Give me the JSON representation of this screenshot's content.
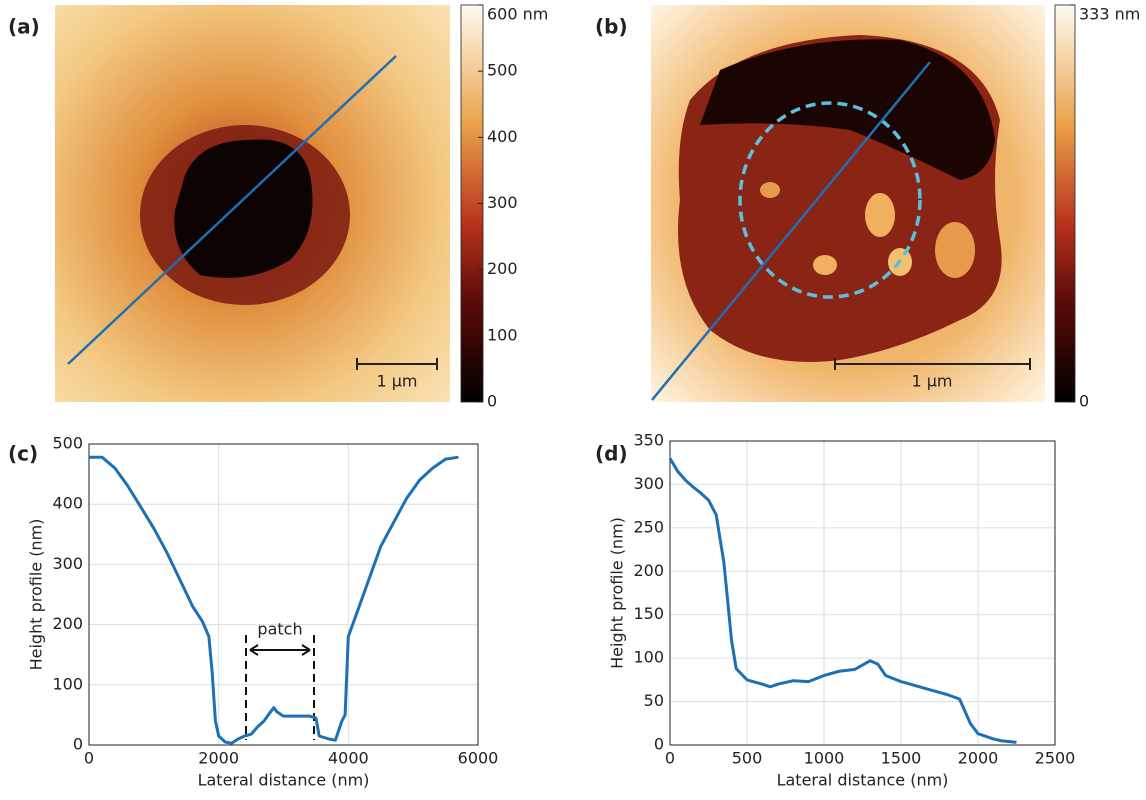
{
  "chart_data": [
    {
      "type": "image",
      "label": "(a)",
      "scale_bar": "1 µm",
      "clim": [
        0,
        600
      ],
      "cticks": [
        0,
        100,
        200,
        300,
        400,
        500,
        {
          "value": 600,
          "label": "600 nm"
        }
      ]
    },
    {
      "type": "image",
      "label": "(b)",
      "scale_bar": "1 µm",
      "clim": [
        0,
        333
      ],
      "cticks": [
        0,
        {
          "value": 333,
          "label": "333 nm"
        }
      ]
    },
    {
      "type": "line",
      "label": "(c)",
      "xlabel": "Lateral distance (nm)",
      "ylabel": "Height profile (nm)",
      "annotation": "patch",
      "color": "#1f6fb4",
      "grid": true,
      "xlim": [
        0,
        6000
      ],
      "xticks": [
        0,
        2000,
        4000,
        6000
      ],
      "ylim": [
        0,
        500
      ],
      "yticks": [
        0,
        100,
        200,
        300,
        400,
        500
      ],
      "x": [
        0,
        200,
        400,
        600,
        800,
        1000,
        1200,
        1400,
        1600,
        1750,
        1850,
        1900,
        1950,
        2000,
        2100,
        2200,
        2300,
        2400,
        2500,
        2600,
        2700,
        2800,
        2850,
        2900,
        3000,
        3200,
        3400,
        3500,
        3550,
        3700,
        3800,
        3900,
        3950,
        4000,
        4100,
        4300,
        4500,
        4700,
        4900,
        5100,
        5300,
        5500,
        5700
      ],
      "values": [
        478,
        478,
        460,
        430,
        395,
        360,
        320,
        275,
        230,
        205,
        180,
        120,
        40,
        15,
        5,
        3,
        10,
        15,
        18,
        30,
        40,
        55,
        62,
        55,
        48,
        48,
        48,
        45,
        15,
        10,
        8,
        40,
        50,
        180,
        210,
        270,
        330,
        370,
        410,
        440,
        460,
        475,
        478
      ]
    },
    {
      "type": "line",
      "label": "(d)",
      "xlabel": "Lateral distance (nm)",
      "ylabel": "Height profile (nm)",
      "color": "#1f6fb4",
      "grid": true,
      "xlim": [
        0,
        2500
      ],
      "xticks": [
        0,
        500,
        1000,
        1500,
        2000,
        2500
      ],
      "ylim": [
        0,
        350
      ],
      "yticks": [
        0,
        50,
        100,
        150,
        200,
        250,
        300,
        350
      ],
      "x": [
        0,
        50,
        100,
        150,
        200,
        250,
        300,
        350,
        400,
        430,
        500,
        600,
        650,
        700,
        800,
        900,
        1000,
        1100,
        1200,
        1300,
        1350,
        1400,
        1500,
        1600,
        1700,
        1800,
        1880,
        1950,
        2000,
        2100,
        2150,
        2250
      ],
      "values": [
        330,
        315,
        305,
        297,
        290,
        282,
        265,
        210,
        120,
        88,
        75,
        70,
        67,
        70,
        74,
        73,
        80,
        85,
        87,
        97,
        93,
        80,
        73,
        68,
        63,
        58,
        53,
        25,
        13,
        7,
        5,
        3
      ]
    }
  ]
}
